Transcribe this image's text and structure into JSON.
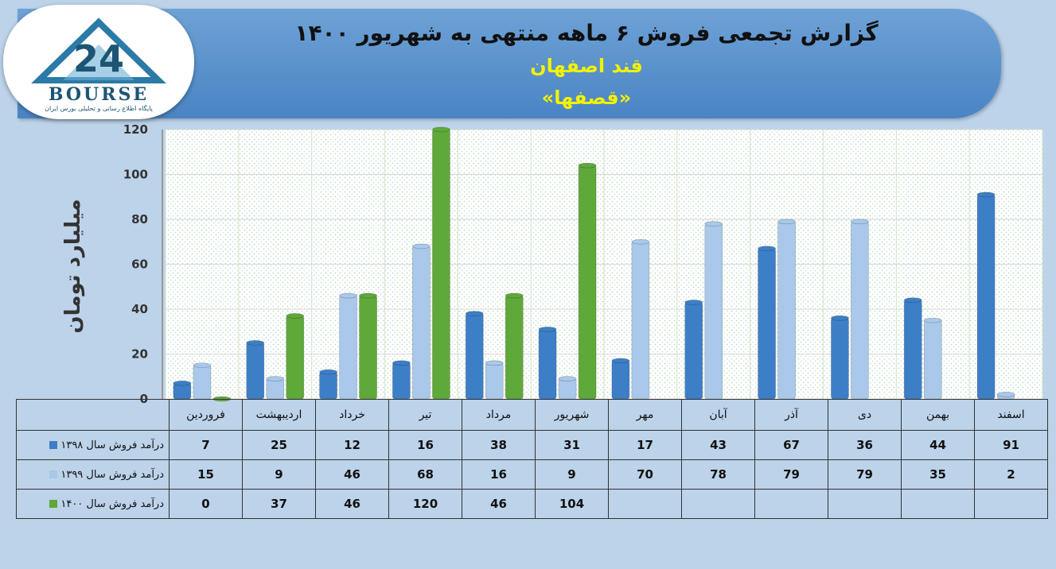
{
  "header": {
    "title": "گزارش تجمعی فروش ۶ ماهه منتهی به شهریور ۱۴۰۰",
    "company": "قند اصفهان",
    "symbol": "«قصفها»"
  },
  "logo": {
    "word": "BOURSE",
    "tagline": "پایگاه اطلاع رسانی و تحلیلی بورس ایران"
  },
  "colors": {
    "series_1398": "#3d7fc6",
    "series_1399": "#a9c8ea",
    "series_1400": "#5fa83a"
  },
  "chart_data": {
    "type": "bar",
    "ylabel": "میلیارد تومان",
    "ylim": [
      0,
      120
    ],
    "yticks": [
      0,
      20,
      40,
      60,
      80,
      100,
      120
    ],
    "categories": [
      "فروردین",
      "اردیبهشت",
      "خرداد",
      "تیر",
      "مرداد",
      "شهریور",
      "مهر",
      "آبان",
      "آذر",
      "دی",
      "بهمن",
      "اسفند"
    ],
    "series": [
      {
        "name": "درآمد فروش سال ۱۳۹۸",
        "values": [
          7,
          25,
          12,
          16,
          38,
          31,
          17,
          43,
          67,
          36,
          44,
          91
        ]
      },
      {
        "name": "درآمد فروش سال ۱۳۹۹",
        "values": [
          15,
          9,
          46,
          68,
          16,
          9,
          70,
          78,
          79,
          79,
          35,
          2
        ]
      },
      {
        "name": "درآمد فروش سال ۱۴۰۰",
        "values": [
          0,
          37,
          46,
          120,
          46,
          104,
          null,
          null,
          null,
          null,
          null,
          null
        ]
      }
    ],
    "grid": true
  }
}
